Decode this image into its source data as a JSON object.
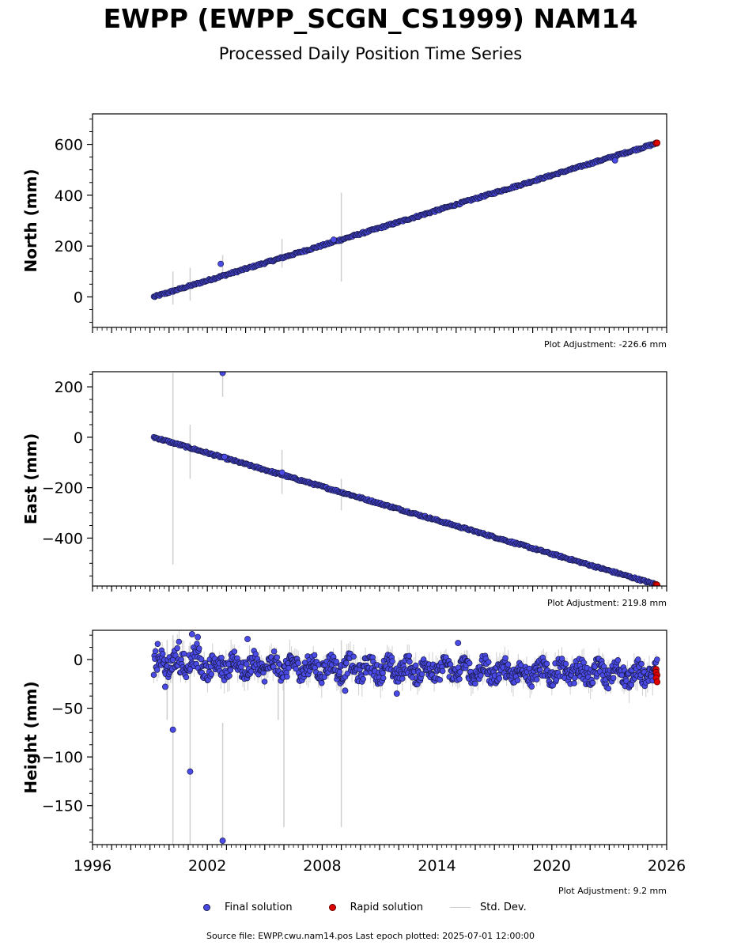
{
  "title": "EWPP (EWPP_SCGN_CS1999) NAM14",
  "subtitle": "Processed Daily Position Time Series",
  "footer": "Source file: EWPP.cwu.nam14.pos  Last epoch plotted: 2025-07-01 12:00:00",
  "legend": {
    "final": "Final solution",
    "rapid": "Rapid solution",
    "std": "Std. Dev."
  },
  "colors": {
    "final": "#4a4ae6",
    "final_edge": "#1a1a4a",
    "rapid": "#e00000",
    "stddev": "#cfcfcf"
  },
  "chart_data": [
    {
      "type": "scatter",
      "ylabel": "North (mm)",
      "adjustment": "Plot Adjustment: -226.6 mm",
      "xlim": [
        1996,
        2026
      ],
      "ylim": [
        -120,
        720
      ],
      "yticks": [
        0,
        200,
        400,
        600
      ],
      "yticklabels": [
        "0",
        "200",
        "400",
        "600"
      ],
      "trend": {
        "x": [
          1999.2,
          2025.5
        ],
        "y": [
          0,
          605
        ]
      },
      "outliers": [
        {
          "x": 2002.7,
          "y": 130
        },
        {
          "x": 2008.6,
          "y": 225
        },
        {
          "x": 2023.3,
          "y": 537
        }
      ],
      "errorbars": [
        {
          "x": 2000.2,
          "low": -30,
          "high": 100
        },
        {
          "x": 2001.1,
          "low": -15,
          "high": 115
        },
        {
          "x": 2002.8,
          "low": 75,
          "high": 165
        },
        {
          "x": 2005.9,
          "low": 115,
          "high": 228
        },
        {
          "x": 2009.0,
          "low": 60,
          "high": 410
        }
      ],
      "rapid": [
        {
          "x": 2025.45,
          "y": 604
        },
        {
          "x": 2025.5,
          "y": 606
        }
      ]
    },
    {
      "type": "scatter",
      "ylabel": "East (mm)",
      "adjustment": "Plot Adjustment: 219.8 mm",
      "xlim": [
        1996,
        2026
      ],
      "ylim": [
        -590,
        260
      ],
      "yticks": [
        -400,
        -200,
        0,
        200
      ],
      "yticklabels": [
        "−400",
        "−200",
        "0",
        "200"
      ],
      "trend": {
        "x": [
          1999.2,
          2025.5
        ],
        "y": [
          0,
          -585
        ]
      },
      "outliers": [
        {
          "x": 2002.8,
          "y": 255
        },
        {
          "x": 2002.9,
          "y": -78
        },
        {
          "x": 2005.9,
          "y": -140
        }
      ],
      "errorbars": [
        {
          "x": 2000.2,
          "low": -505,
          "high": 255
        },
        {
          "x": 2001.1,
          "low": -165,
          "high": 50
        },
        {
          "x": 2002.8,
          "low": 160,
          "high": 255
        },
        {
          "x": 2005.9,
          "low": -225,
          "high": -50
        },
        {
          "x": 2009.0,
          "low": -290,
          "high": -165
        }
      ],
      "rapid": [
        {
          "x": 2025.45,
          "y": -584
        },
        {
          "x": 2025.5,
          "y": -586
        }
      ]
    },
    {
      "type": "scatter",
      "ylabel": "Height (mm)",
      "adjustment": "Plot Adjustment: 9.2 mm",
      "xlim": [
        1996,
        2026
      ],
      "ylim": [
        -190,
        30
      ],
      "yticks": [
        -150,
        -100,
        -50,
        0
      ],
      "yticklabels": [
        "−150",
        "−100",
        "−50",
        "0"
      ],
      "xticks": [
        1996,
        2002,
        2008,
        2014,
        2020,
        2026
      ],
      "xticklabels": [
        "1996",
        "2002",
        "2008",
        "2014",
        "2020",
        "2026"
      ],
      "baseline": {
        "x": [
          1999.2,
          2025.5
        ],
        "y": [
          -5,
          -15
        ]
      },
      "outliers": [
        {
          "x": 1999.8,
          "y": -28
        },
        {
          "x": 2000.2,
          "y": -72
        },
        {
          "x": 2001.1,
          "y": -115
        },
        {
          "x": 2002.8,
          "y": -186
        },
        {
          "x": 2001.2,
          "y": 26
        },
        {
          "x": 2001.5,
          "y": 23
        },
        {
          "x": 2004.1,
          "y": 21
        },
        {
          "x": 2009.2,
          "y": -32
        },
        {
          "x": 2015.1,
          "y": 17
        },
        {
          "x": 2011.9,
          "y": -35
        }
      ],
      "errorbars": [
        {
          "x": 2000.2,
          "low": -190,
          "high": 25
        },
        {
          "x": 2001.1,
          "low": -190,
          "high": 18
        },
        {
          "x": 2002.8,
          "low": -190,
          "high": -65
        },
        {
          "x": 2006.0,
          "low": -172,
          "high": -5
        },
        {
          "x": 2009.0,
          "low": -172,
          "high": 20
        },
        {
          "x": 1999.9,
          "low": -62,
          "high": 20
        },
        {
          "x": 2005.7,
          "low": -62,
          "high": -10
        }
      ],
      "rapid": [
        {
          "x": 2025.45,
          "y": -10
        },
        {
          "x": 2025.45,
          "y": -13
        },
        {
          "x": 2025.5,
          "y": -16
        },
        {
          "x": 2025.45,
          "y": -19
        },
        {
          "x": 2025.5,
          "y": -23
        }
      ]
    }
  ]
}
